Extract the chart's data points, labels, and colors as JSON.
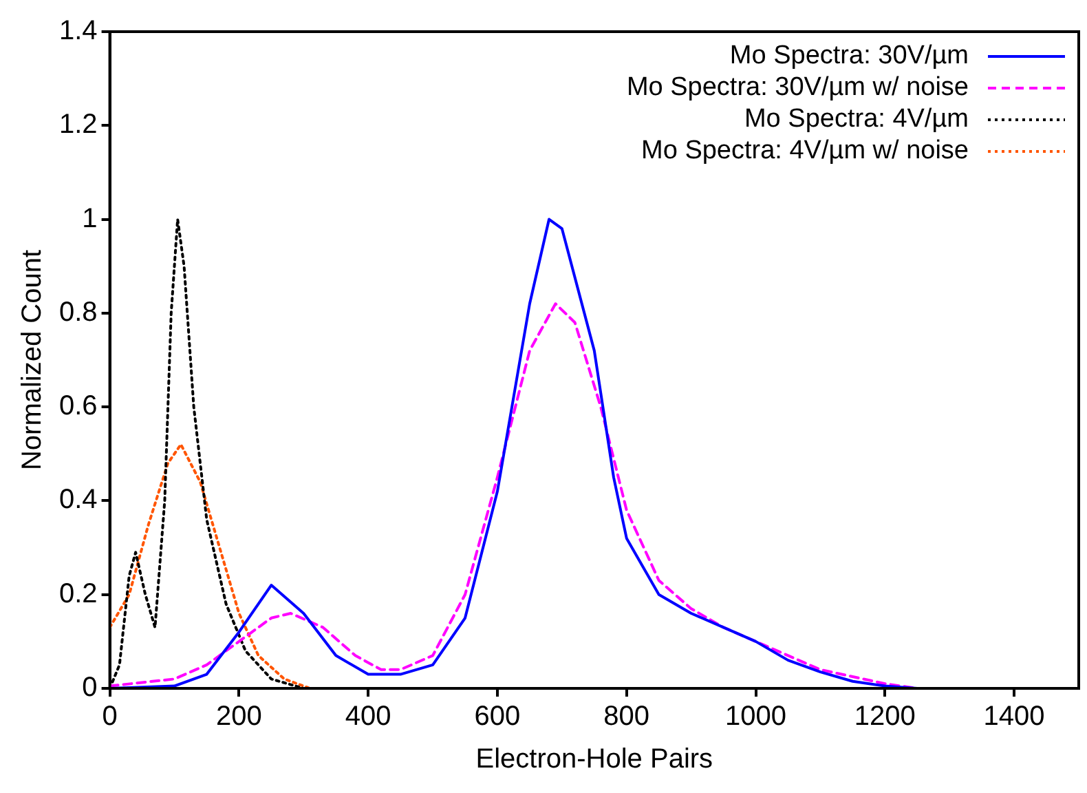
{
  "chart_data": {
    "type": "line",
    "xlabel": "Electron-Hole Pairs",
    "ylabel": "Normalized Count",
    "xlim": [
      0,
      1500
    ],
    "xticks": [
      0,
      200,
      400,
      600,
      800,
      1000,
      1200,
      1400
    ],
    "ylim": [
      0,
      1.4
    ],
    "yticks": [
      0,
      0.2,
      0.4,
      0.6,
      0.8,
      1,
      1.2,
      1.4
    ],
    "grid": false,
    "legend": "top right",
    "marker": "none",
    "series": [
      {
        "name": "Mo Spectra: 30V/µm",
        "color": "#0000ff",
        "line_style": "solid",
        "x": [
          0,
          100,
          150,
          200,
          250,
          300,
          350,
          400,
          450,
          500,
          550,
          600,
          650,
          680,
          700,
          750,
          780,
          800,
          850,
          900,
          950,
          1000,
          1050,
          1100,
          1150,
          1200,
          1250
        ],
        "values": [
          0,
          0.005,
          0.03,
          0.12,
          0.22,
          0.16,
          0.07,
          0.03,
          0.03,
          0.05,
          0.15,
          0.42,
          0.82,
          1.0,
          0.98,
          0.72,
          0.45,
          0.32,
          0.2,
          0.16,
          0.13,
          0.1,
          0.06,
          0.035,
          0.015,
          0.005,
          0
        ]
      },
      {
        "name": "Mo Spectra: 30V/µm w/ noise",
        "color": "#ff00ff",
        "line_style": "dashed",
        "x": [
          0,
          100,
          150,
          200,
          250,
          280,
          330,
          380,
          420,
          450,
          500,
          550,
          600,
          650,
          690,
          720,
          760,
          800,
          850,
          900,
          950,
          1000,
          1100,
          1200,
          1250
        ],
        "values": [
          0.005,
          0.02,
          0.05,
          0.1,
          0.15,
          0.16,
          0.13,
          0.07,
          0.04,
          0.04,
          0.07,
          0.2,
          0.45,
          0.72,
          0.82,
          0.78,
          0.6,
          0.38,
          0.23,
          0.17,
          0.13,
          0.1,
          0.04,
          0.01,
          0
        ]
      },
      {
        "name": "Mo Spectra: 4V/µm",
        "color": "#000000",
        "line_style": "dotted",
        "x": [
          0,
          15,
          30,
          40,
          55,
          70,
          85,
          95,
          105,
          115,
          130,
          150,
          180,
          210,
          250,
          300
        ],
        "values": [
          0,
          0.05,
          0.24,
          0.29,
          0.2,
          0.13,
          0.4,
          0.8,
          1.0,
          0.9,
          0.6,
          0.36,
          0.18,
          0.08,
          0.02,
          0
        ]
      },
      {
        "name": "Mo Spectra: 4V/µm w/ noise",
        "color": "#ff5500",
        "line_style": "dotted",
        "x": [
          0,
          30,
          60,
          90,
          110,
          140,
          170,
          200,
          230,
          270,
          310
        ],
        "values": [
          0.13,
          0.2,
          0.35,
          0.48,
          0.52,
          0.44,
          0.3,
          0.16,
          0.07,
          0.02,
          0
        ]
      }
    ]
  }
}
